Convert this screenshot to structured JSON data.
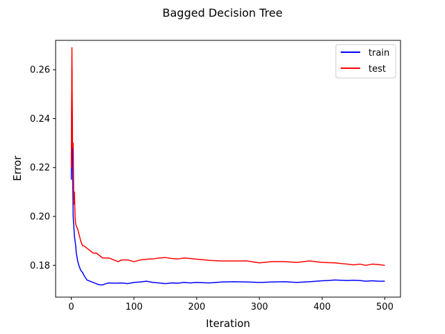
{
  "chart_data": {
    "type": "line",
    "title": "Bagged Decision Tree",
    "xlabel": "Iteration",
    "ylabel": "Error",
    "xlim": [
      -25,
      525
    ],
    "ylim": [
      0.167,
      0.272
    ],
    "xticks": [
      0,
      100,
      200,
      300,
      400,
      500
    ],
    "yticks": [
      0.18,
      0.2,
      0.22,
      0.24,
      0.26
    ],
    "ytick_labels": [
      "0.18",
      "0.20",
      "0.22",
      "0.24",
      "0.26"
    ],
    "grid": false,
    "legend": {
      "position": "top-right"
    },
    "series": [
      {
        "name": "train",
        "color": "#0000ff",
        "x": [
          0,
          1,
          2,
          3,
          4,
          5,
          6,
          7,
          8,
          10,
          12,
          15,
          18,
          20,
          25,
          30,
          35,
          40,
          45,
          50,
          55,
          60,
          70,
          80,
          90,
          100,
          110,
          120,
          130,
          140,
          150,
          160,
          170,
          180,
          190,
          200,
          220,
          240,
          260,
          280,
          300,
          320,
          340,
          360,
          380,
          400,
          410,
          420,
          430,
          440,
          450,
          460,
          470,
          480,
          490,
          500
        ],
        "y": [
          0.215,
          0.261,
          0.222,
          0.2,
          0.196,
          0.192,
          0.19,
          0.188,
          0.185,
          0.182,
          0.18,
          0.178,
          0.177,
          0.176,
          0.174,
          0.1735,
          0.173,
          0.1725,
          0.172,
          0.172,
          0.1725,
          0.1728,
          0.1727,
          0.1728,
          0.1725,
          0.173,
          0.1732,
          0.1735,
          0.173,
          0.1728,
          0.1725,
          0.1728,
          0.1727,
          0.173,
          0.1728,
          0.173,
          0.1728,
          0.1732,
          0.1733,
          0.1732,
          0.173,
          0.1732,
          0.1733,
          0.173,
          0.1733,
          0.1737,
          0.1738,
          0.174,
          0.1739,
          0.1738,
          0.1739,
          0.1738,
          0.1735,
          0.1737,
          0.1735,
          0.1735
        ]
      },
      {
        "name": "test",
        "color": "#ff0000",
        "x": [
          0,
          1,
          2,
          3,
          4,
          5,
          6,
          7,
          8,
          10,
          12,
          15,
          18,
          20,
          25,
          30,
          35,
          40,
          45,
          50,
          55,
          60,
          65,
          70,
          75,
          80,
          90,
          100,
          110,
          120,
          130,
          140,
          150,
          160,
          170,
          180,
          190,
          200,
          210,
          220,
          240,
          260,
          280,
          300,
          320,
          340,
          360,
          380,
          400,
          420,
          440,
          450,
          460,
          470,
          480,
          490,
          500
        ],
        "y": [
          0.22,
          0.269,
          0.228,
          0.23,
          0.205,
          0.21,
          0.2,
          0.197,
          0.196,
          0.195,
          0.193,
          0.19,
          0.188,
          0.188,
          0.187,
          0.186,
          0.185,
          0.185,
          0.184,
          0.183,
          0.183,
          0.183,
          0.1825,
          0.182,
          0.1815,
          0.1822,
          0.1822,
          0.1815,
          0.1822,
          0.1825,
          0.1826,
          0.183,
          0.1832,
          0.1828,
          0.1826,
          0.183,
          0.1828,
          0.1825,
          0.1823,
          0.182,
          0.1818,
          0.1818,
          0.1818,
          0.181,
          0.1815,
          0.1815,
          0.1812,
          0.1818,
          0.1812,
          0.181,
          0.1805,
          0.1802,
          0.1805,
          0.18,
          0.1805,
          0.1803,
          0.18
        ]
      }
    ]
  }
}
